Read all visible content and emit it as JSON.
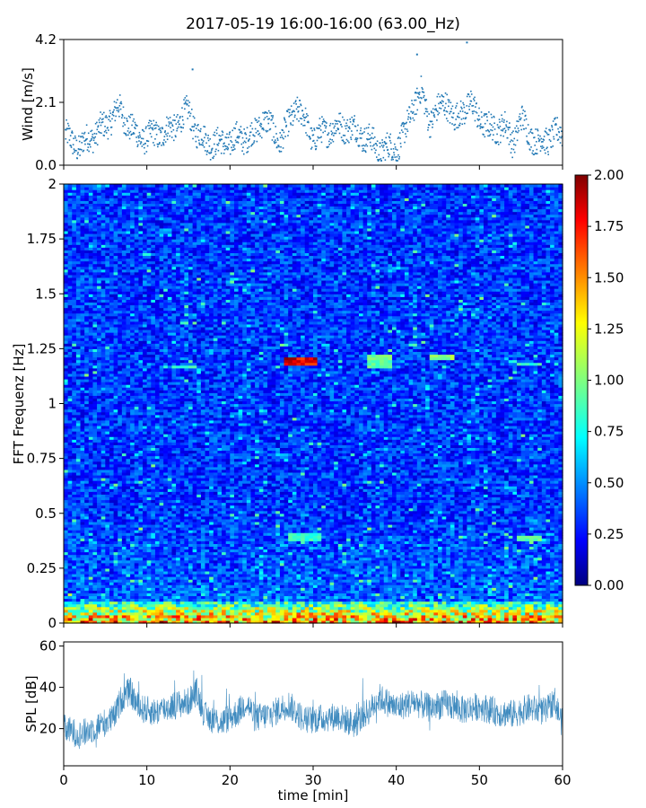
{
  "chart_data": {
    "title": "2017-05-19 16:00-16:00 (63.00_Hz)",
    "shared_x": {
      "label": "time [min]",
      "range": [
        0,
        60
      ],
      "ticks": [
        0,
        10,
        20,
        30,
        40,
        50,
        60
      ],
      "tick_labels": [
        "0",
        "10",
        "20",
        "30",
        "40",
        "50",
        "60"
      ]
    },
    "panels": [
      {
        "id": "wind",
        "type": "scatter",
        "ylabel": "Wind [m/s]",
        "ylim": [
          0,
          4.2
        ],
        "yticks": [
          0,
          2.1,
          4.2
        ],
        "ytick_labels": [
          "0.0",
          "2.1",
          "4.2"
        ],
        "marker_color": "#1f77b4",
        "profile": {
          "t": [
            0,
            2,
            3,
            5,
            6.5,
            8,
            9,
            11,
            13,
            15,
            16,
            17,
            19,
            21,
            23,
            24,
            26,
            27,
            28,
            30,
            32,
            34,
            36,
            37,
            38,
            40,
            41,
            42,
            43,
            44,
            45,
            46,
            47,
            48,
            49,
            51,
            53,
            54,
            55,
            57,
            58,
            60
          ],
          "y": [
            1.0,
            0.6,
            0.9,
            1.3,
            1.9,
            1.3,
            0.9,
            1.0,
            1.2,
            1.8,
            1.1,
            0.8,
            0.7,
            0.9,
            1.0,
            1.6,
            0.8,
            1.3,
            2.0,
            0.9,
            1.2,
            1.3,
            1.0,
            0.8,
            0.5,
            0.6,
            1.0,
            2.0,
            2.4,
            1.5,
            1.8,
            2.2,
            1.4,
            1.9,
            2.0,
            1.2,
            1.3,
            0.8,
            1.5,
            0.7,
            0.9,
            1.1
          ]
        },
        "outliers": [
          {
            "t": 15.5,
            "y": 3.2
          },
          {
            "t": 42.5,
            "y": 3.7
          },
          {
            "t": 48.5,
            "y": 4.1
          }
        ]
      },
      {
        "id": "spectrogram",
        "type": "heatmap",
        "ylabel": "FFT Frequenz [Hz]",
        "ylim": [
          0,
          2
        ],
        "yticks": [
          0,
          0.25,
          0.5,
          0.75,
          1,
          1.25,
          1.5,
          1.75,
          2
        ],
        "ytick_labels": [
          "0",
          "0.25",
          "0.5",
          "0.75",
          "1",
          "1.25",
          "1.5",
          "1.75",
          "2"
        ],
        "colormap": "jet",
        "colorbar": {
          "range": [
            0,
            2
          ],
          "ticks": [
            0,
            0.25,
            0.5,
            0.75,
            1,
            1.25,
            1.5,
            1.75,
            2
          ],
          "tick_labels": [
            "0.00",
            "0.25",
            "0.50",
            "0.75",
            "1.00",
            "1.25",
            "1.50",
            "1.75",
            "2.00"
          ]
        },
        "baseline_level": 0.35,
        "low_frequency_band": {
          "max_hz": 0.1,
          "level": 1.6
        },
        "hotspots": [
          {
            "t0": 26.5,
            "t1": 30.5,
            "f0": 1.17,
            "f1": 1.21,
            "level": 1.9
          },
          {
            "t0": 36.5,
            "t1": 39.5,
            "f0": 1.16,
            "f1": 1.22,
            "level": 1.0
          },
          {
            "t0": 13,
            "t1": 16,
            "f0": 1.16,
            "f1": 1.18,
            "level": 0.9
          },
          {
            "t0": 44,
            "t1": 47,
            "f0": 1.2,
            "f1": 1.22,
            "level": 1.1
          },
          {
            "t0": 54.5,
            "t1": 57.5,
            "f0": 1.17,
            "f1": 1.19,
            "level": 0.9
          },
          {
            "t0": 54.5,
            "t1": 57.5,
            "f0": 0.37,
            "f1": 0.4,
            "level": 1.0
          },
          {
            "t0": 27,
            "t1": 31,
            "f0": 0.37,
            "f1": 0.41,
            "level": 0.9
          }
        ]
      },
      {
        "id": "spl",
        "type": "line",
        "ylabel": "SPL [dB]",
        "ylim": [
          2,
          62
        ],
        "yticks": [
          20,
          40,
          60
        ],
        "ytick_labels": [
          "20",
          "40",
          "60"
        ],
        "line_color": "#1f77b4",
        "profile": {
          "t": [
            0,
            2,
            4,
            6,
            7,
            8,
            9,
            11,
            13,
            15,
            16,
            17,
            19,
            21,
            22,
            23,
            25,
            27,
            29,
            31,
            33,
            35,
            37,
            38,
            40,
            42,
            44,
            46,
            48,
            50,
            52,
            54,
            56,
            58,
            59,
            60
          ],
          "y": [
            20,
            17,
            21,
            25,
            35,
            38,
            30,
            28,
            31,
            33,
            38,
            26,
            23,
            28,
            33,
            25,
            27,
            32,
            24,
            25,
            26,
            22,
            30,
            35,
            30,
            33,
            30,
            32,
            29,
            31,
            28,
            27,
            30,
            28,
            34,
            22
          ]
        }
      }
    ]
  }
}
